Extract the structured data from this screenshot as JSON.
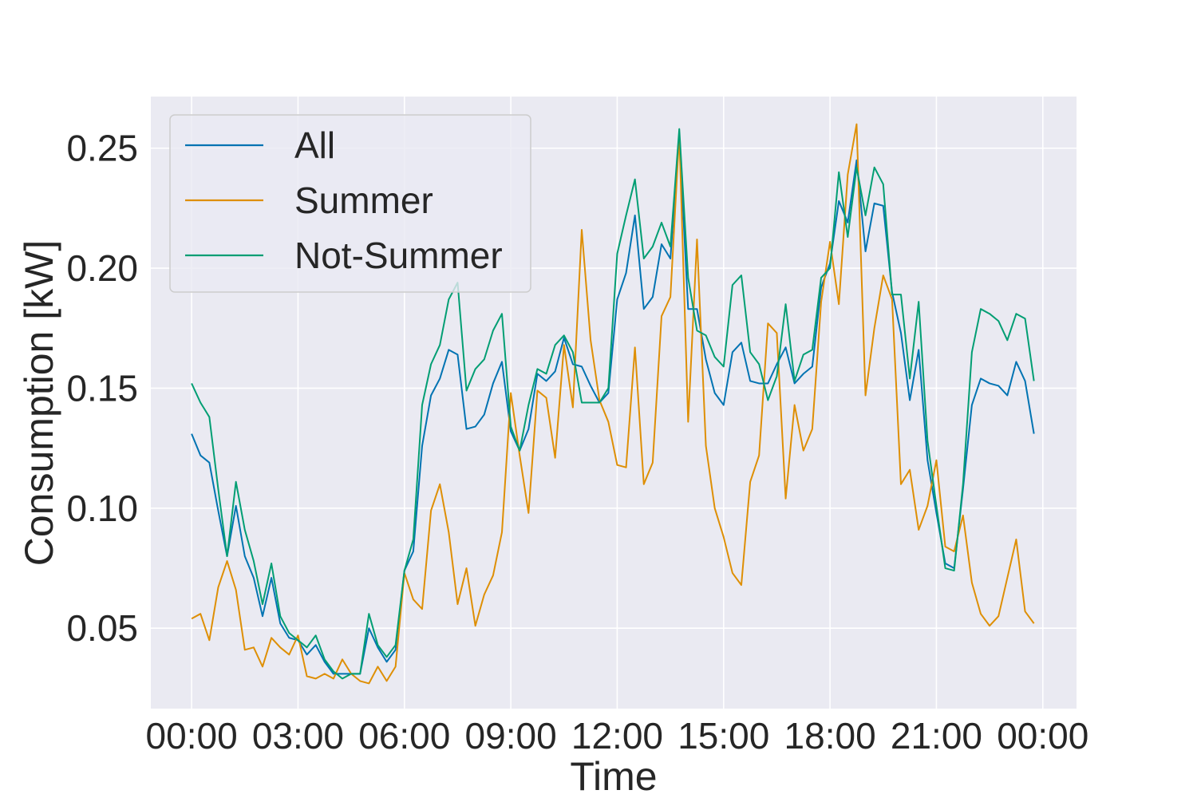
{
  "chart_data": {
    "type": "line",
    "title": "",
    "xlabel": "Time",
    "ylabel": "Consumption [kW]",
    "x_unit": "hours",
    "x_step_hours": 0.25,
    "xlim": [
      -1.15,
      24.95
    ],
    "ylim": [
      0.0165,
      0.2715
    ],
    "x_ticks": [
      {
        "value": 0,
        "label": "00:00"
      },
      {
        "value": 3,
        "label": "03:00"
      },
      {
        "value": 6,
        "label": "06:00"
      },
      {
        "value": 9,
        "label": "09:00"
      },
      {
        "value": 12,
        "label": "12:00"
      },
      {
        "value": 15,
        "label": "15:00"
      },
      {
        "value": 18,
        "label": "18:00"
      },
      {
        "value": 21,
        "label": "21:00"
      },
      {
        "value": 24,
        "label": "00:00"
      }
    ],
    "y_ticks": [
      {
        "value": 0.05,
        "label": "0.05"
      },
      {
        "value": 0.1,
        "label": "0.10"
      },
      {
        "value": 0.15,
        "label": "0.15"
      },
      {
        "value": 0.2,
        "label": "0.20"
      },
      {
        "value": 0.25,
        "label": "0.25"
      }
    ],
    "grid": true,
    "legend_position": "top-left",
    "background": "#eaeaf2",
    "series": [
      {
        "name": "All",
        "color": "#0173b2",
        "values": [
          0.131,
          0.122,
          0.119,
          0.099,
          0.08,
          0.101,
          0.08,
          0.071,
          0.055,
          0.071,
          0.052,
          0.046,
          0.045,
          0.039,
          0.043,
          0.036,
          0.031,
          0.031,
          0.031,
          0.031,
          0.05,
          0.042,
          0.036,
          0.041,
          0.074,
          0.082,
          0.126,
          0.147,
          0.154,
          0.166,
          0.164,
          0.133,
          0.134,
          0.139,
          0.152,
          0.161,
          0.132,
          0.124,
          0.133,
          0.156,
          0.153,
          0.157,
          0.171,
          0.16,
          0.159,
          0.151,
          0.144,
          0.148,
          0.187,
          0.198,
          0.222,
          0.183,
          0.188,
          0.21,
          0.204,
          0.255,
          0.183,
          0.183,
          0.162,
          0.148,
          0.143,
          0.165,
          0.169,
          0.153,
          0.152,
          0.152,
          0.16,
          0.167,
          0.152,
          0.156,
          0.159,
          0.192,
          0.202,
          0.228,
          0.219,
          0.245,
          0.207,
          0.227,
          0.226,
          0.19,
          0.173,
          0.145,
          0.166,
          0.12,
          0.098,
          0.077,
          0.075,
          0.108,
          0.143,
          0.154,
          0.152,
          0.151,
          0.147,
          0.161,
          0.153,
          0.131
        ]
      },
      {
        "name": "Summer",
        "color": "#de8f05",
        "values": [
          0.054,
          0.056,
          0.045,
          0.067,
          0.078,
          0.066,
          0.041,
          0.042,
          0.034,
          0.046,
          0.042,
          0.039,
          0.047,
          0.03,
          0.029,
          0.031,
          0.029,
          0.037,
          0.031,
          0.028,
          0.027,
          0.034,
          0.028,
          0.034,
          0.073,
          0.062,
          0.058,
          0.099,
          0.11,
          0.09,
          0.06,
          0.075,
          0.051,
          0.064,
          0.072,
          0.09,
          0.148,
          0.122,
          0.098,
          0.149,
          0.146,
          0.121,
          0.168,
          0.142,
          0.216,
          0.17,
          0.145,
          0.136,
          0.118,
          0.117,
          0.167,
          0.11,
          0.119,
          0.18,
          0.188,
          0.256,
          0.136,
          0.212,
          0.126,
          0.1,
          0.088,
          0.073,
          0.068,
          0.111,
          0.122,
          0.177,
          0.173,
          0.104,
          0.143,
          0.124,
          0.133,
          0.186,
          0.211,
          0.185,
          0.239,
          0.26,
          0.147,
          0.175,
          0.197,
          0.187,
          0.11,
          0.116,
          0.091,
          0.101,
          0.12,
          0.084,
          0.082,
          0.097,
          0.069,
          0.056,
          0.051,
          0.055,
          0.071,
          0.087,
          0.057,
          0.052
        ]
      },
      {
        "name": "Not-Summer",
        "color": "#029e73",
        "values": [
          0.152,
          0.144,
          0.138,
          0.108,
          0.08,
          0.111,
          0.091,
          0.078,
          0.06,
          0.077,
          0.055,
          0.048,
          0.045,
          0.042,
          0.047,
          0.037,
          0.032,
          0.029,
          0.031,
          0.031,
          0.056,
          0.043,
          0.038,
          0.043,
          0.074,
          0.087,
          0.143,
          0.16,
          0.168,
          0.187,
          0.194,
          0.149,
          0.158,
          0.162,
          0.174,
          0.181,
          0.134,
          0.124,
          0.143,
          0.158,
          0.156,
          0.168,
          0.172,
          0.165,
          0.144,
          0.144,
          0.144,
          0.15,
          0.206,
          0.222,
          0.237,
          0.204,
          0.209,
          0.219,
          0.209,
          0.258,
          0.196,
          0.174,
          0.172,
          0.163,
          0.159,
          0.193,
          0.197,
          0.165,
          0.16,
          0.145,
          0.155,
          0.185,
          0.153,
          0.164,
          0.166,
          0.196,
          0.2,
          0.24,
          0.213,
          0.242,
          0.222,
          0.242,
          0.235,
          0.189,
          0.189,
          0.154,
          0.186,
          0.128,
          0.101,
          0.075,
          0.074,
          0.11,
          0.165,
          0.183,
          0.181,
          0.178,
          0.17,
          0.181,
          0.179,
          0.153
        ]
      }
    ]
  }
}
